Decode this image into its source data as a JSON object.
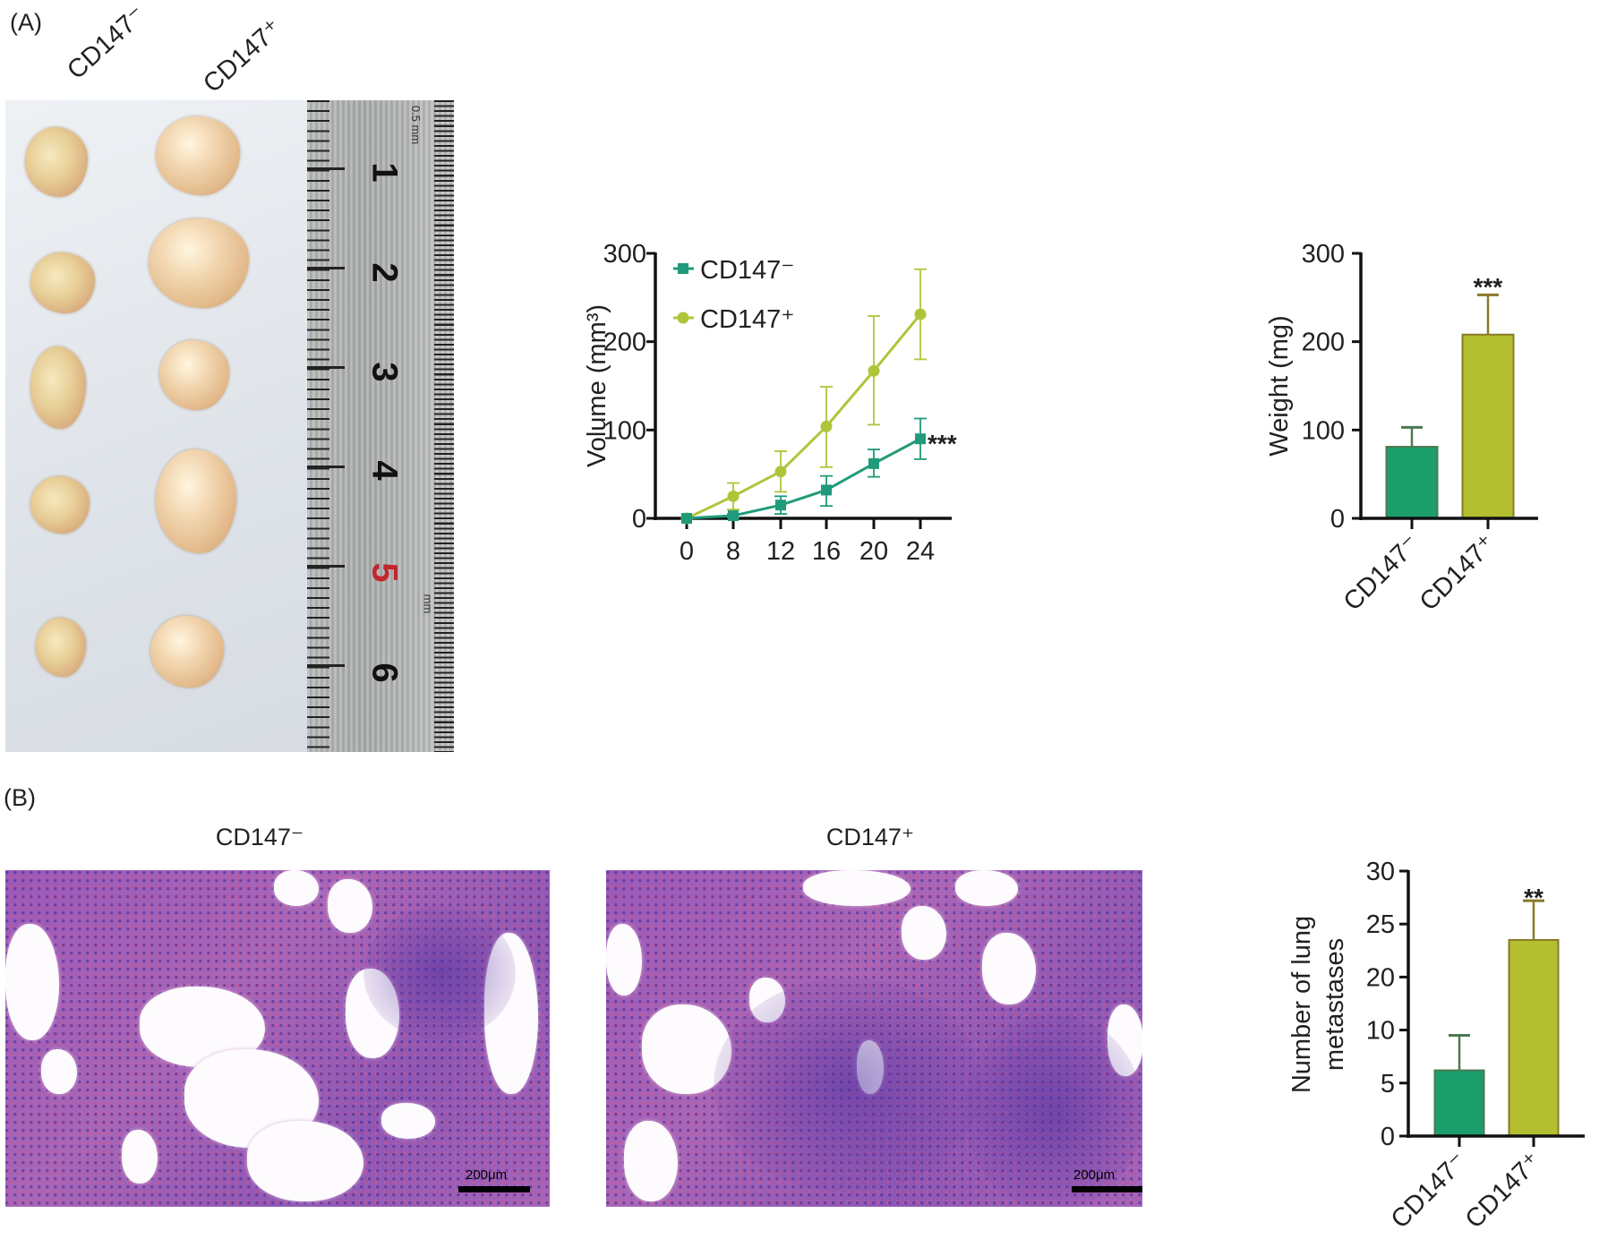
{
  "panels": {
    "a_label": "(A)",
    "b_label": "(B)"
  },
  "panel_a": {
    "photo_group_labels": [
      "CD147⁻",
      "CD147⁺"
    ],
    "ruler_numbers": [
      "1",
      "2",
      "3",
      "4",
      "5",
      "6"
    ],
    "ruler_unit_top": "0.5 mm",
    "ruler_unit_mid": "mm"
  },
  "panel_b": {
    "histology_titles": [
      "CD147⁻",
      "CD147⁺"
    ],
    "scale_bar_label": "200μm"
  },
  "colors": {
    "cd147_neg": "#1b9e6c",
    "cd147_pos": "#b3bf2f",
    "line_neg": "#1f9a7a",
    "line_pos": "#b0c43a"
  },
  "chart_data": [
    {
      "type": "line",
      "title": "",
      "xlabel": "",
      "ylabel": "Volume (mm³)",
      "x": [
        "0",
        "8",
        "12",
        "16",
        "20",
        "24"
      ],
      "ylim": [
        0,
        300
      ],
      "yticks": [
        0,
        100,
        200,
        300
      ],
      "legend_position": "top-left",
      "series": [
        {
          "name": "CD147⁻",
          "marker": "square",
          "values": [
            0,
            3,
            15,
            32,
            62,
            90
          ],
          "error_upper": [
            0,
            5,
            25,
            48,
            78,
            113
          ],
          "error_lower": [
            0,
            1,
            5,
            14,
            47,
            67
          ]
        },
        {
          "name": "CD147⁺",
          "marker": "circle",
          "values": [
            0,
            25,
            53,
            104,
            167,
            231
          ],
          "error_upper": [
            0,
            40,
            76,
            149,
            229,
            282
          ],
          "error_lower": [
            0,
            10,
            30,
            58,
            106,
            180
          ]
        }
      ],
      "annotations": [
        {
          "text": "***",
          "at": "CD147⁻, x=24"
        }
      ]
    },
    {
      "type": "bar",
      "title": "",
      "xlabel": "",
      "ylabel": "Weight (mg)",
      "categories": [
        "CD147⁻",
        "CD147⁺"
      ],
      "values": [
        81,
        208
      ],
      "error_upper": [
        103,
        253
      ],
      "ylim": [
        0,
        300
      ],
      "yticks": [
        0,
        100,
        200,
        300
      ],
      "annotations": [
        {
          "text": "***",
          "category": "CD147⁺"
        }
      ]
    },
    {
      "type": "bar",
      "title": "",
      "xlabel": "",
      "ylabel": [
        "Number of lung",
        "metastases"
      ],
      "categories": [
        "CD147⁻",
        "CD147⁺"
      ],
      "values": [
        6.2,
        23.5
      ],
      "error_upper": [
        9.5,
        27.2
      ],
      "ylim": [
        0,
        30
      ],
      "yticks": [
        0,
        5,
        10,
        20,
        25,
        30
      ],
      "annotations": [
        {
          "text": "**",
          "category": "CD147⁺"
        }
      ]
    }
  ]
}
